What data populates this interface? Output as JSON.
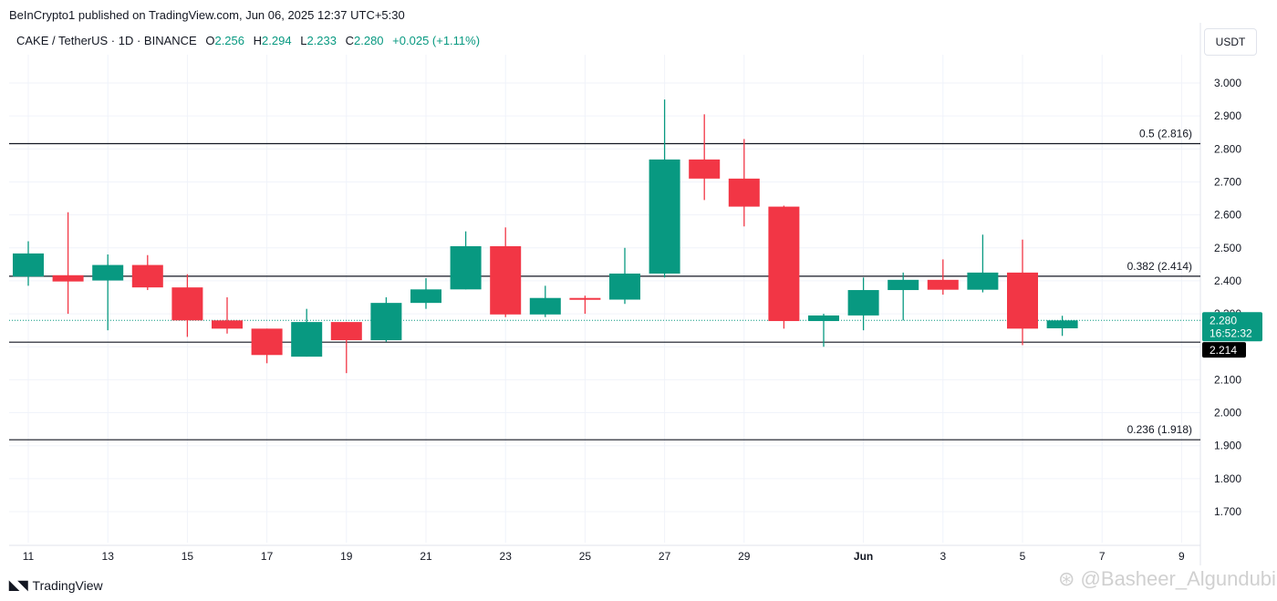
{
  "header": {
    "publisher": "BeInCrypto1 published on TradingView.com, Jun 06, 2025 12:37 UTC+5:30",
    "symbol": "CAKE / TetherUS · 1D · BINANCE",
    "open_label": "O",
    "open": "2.256",
    "high_label": "H",
    "high": "2.294",
    "low_label": "L",
    "low": "2.233",
    "close_label": "C",
    "close": "2.280",
    "change": "+0.025 (+1.11%)"
  },
  "currency_button": "USDT",
  "footer": {
    "logo_text": "TradingView",
    "watermark": "Basheer_Algundubi"
  },
  "colors": {
    "up": "#089981",
    "down": "#f23645",
    "level_line": "#131722",
    "grid": "#f0f3fa"
  },
  "chart_data": {
    "type": "candlestick",
    "y_axis": {
      "ticks": [
        3.0,
        2.9,
        2.8,
        2.7,
        2.6,
        2.5,
        2.4,
        2.3,
        2.2,
        2.1,
        2.0,
        1.9,
        1.8,
        1.7
      ],
      "tick_labels": [
        "3.000",
        "2.900",
        "2.800",
        "2.700",
        "2.600",
        "2.500",
        "2.400",
        "2.300",
        "2.200",
        "2.100",
        "2.000",
        "1.900",
        "1.800",
        "1.700"
      ],
      "range": [
        1.62,
        3.08
      ]
    },
    "x_axis": {
      "tick_labels": [
        {
          "label": "11",
          "day": 11
        },
        {
          "label": "13",
          "day": 13
        },
        {
          "label": "15",
          "day": 15
        },
        {
          "label": "17",
          "day": 17
        },
        {
          "label": "19",
          "day": 19
        },
        {
          "label": "21",
          "day": 21
        },
        {
          "label": "23",
          "day": 23
        },
        {
          "label": "25",
          "day": 25
        },
        {
          "label": "27",
          "day": 27
        },
        {
          "label": "29",
          "day": 29
        },
        {
          "label": "Jun",
          "day": 32,
          "bold": true
        },
        {
          "label": "3",
          "day": 34
        },
        {
          "label": "5",
          "day": 36
        },
        {
          "label": "7",
          "day": 38
        },
        {
          "label": "9",
          "day": 40
        }
      ]
    },
    "candles": [
      {
        "date": "May 11",
        "o": 2.413,
        "h": 2.52,
        "l": 2.385,
        "c": 2.483
      },
      {
        "date": "May 12",
        "o": 2.417,
        "h": 2.608,
        "l": 2.3,
        "c": 2.398
      },
      {
        "date": "May 13",
        "o": 2.401,
        "h": 2.48,
        "l": 2.25,
        "c": 2.448
      },
      {
        "date": "May 14",
        "o": 2.448,
        "h": 2.478,
        "l": 2.372,
        "c": 2.38
      },
      {
        "date": "May 15",
        "o": 2.38,
        "h": 2.42,
        "l": 2.23,
        "c": 2.28
      },
      {
        "date": "May 16",
        "o": 2.28,
        "h": 2.35,
        "l": 2.24,
        "c": 2.255
      },
      {
        "date": "May 17",
        "o": 2.255,
        "h": 2.255,
        "l": 2.15,
        "c": 2.175
      },
      {
        "date": "May 18",
        "o": 2.17,
        "h": 2.315,
        "l": 2.17,
        "c": 2.275
      },
      {
        "date": "May 19",
        "o": 2.275,
        "h": 2.275,
        "l": 2.12,
        "c": 2.22
      },
      {
        "date": "May 20",
        "o": 2.22,
        "h": 2.35,
        "l": 2.215,
        "c": 2.333
      },
      {
        "date": "May 21",
        "o": 2.333,
        "h": 2.408,
        "l": 2.315,
        "c": 2.374
      },
      {
        "date": "May 22",
        "o": 2.374,
        "h": 2.55,
        "l": 2.374,
        "c": 2.505
      },
      {
        "date": "May 23",
        "o": 2.505,
        "h": 2.562,
        "l": 2.29,
        "c": 2.298
      },
      {
        "date": "May 24",
        "o": 2.298,
        "h": 2.385,
        "l": 2.29,
        "c": 2.348
      },
      {
        "date": "May 25",
        "o": 2.348,
        "h": 2.355,
        "l": 2.3,
        "c": 2.343
      },
      {
        "date": "May 26",
        "o": 2.343,
        "h": 2.5,
        "l": 2.33,
        "c": 2.422
      },
      {
        "date": "May 27",
        "o": 2.422,
        "h": 2.95,
        "l": 2.41,
        "c": 2.768
      },
      {
        "date": "May 28",
        "o": 2.768,
        "h": 2.905,
        "l": 2.645,
        "c": 2.71
      },
      {
        "date": "May 29",
        "o": 2.71,
        "h": 2.83,
        "l": 2.565,
        "c": 2.625
      },
      {
        "date": "May 30",
        "o": 2.625,
        "h": 2.628,
        "l": 2.255,
        "c": 2.278
      },
      {
        "date": "May 31",
        "o": 2.278,
        "h": 2.3,
        "l": 2.2,
        "c": 2.295
      },
      {
        "date": "Jun 01",
        "o": 2.295,
        "h": 2.41,
        "l": 2.25,
        "c": 2.372
      },
      {
        "date": "Jun 02",
        "o": 2.372,
        "h": 2.425,
        "l": 2.28,
        "c": 2.403
      },
      {
        "date": "Jun 03",
        "o": 2.403,
        "h": 2.465,
        "l": 2.358,
        "c": 2.373
      },
      {
        "date": "Jun 04",
        "o": 2.373,
        "h": 2.54,
        "l": 2.365,
        "c": 2.425
      },
      {
        "date": "Jun 05",
        "o": 2.425,
        "h": 2.525,
        "l": 2.205,
        "c": 2.255
      },
      {
        "date": "Jun 06",
        "o": 2.256,
        "h": 2.294,
        "l": 2.233,
        "c": 2.28
      }
    ],
    "levels": [
      {
        "label": "0.5 (2.816)",
        "value": 2.816
      },
      {
        "label": "0.382 (2.414)",
        "value": 2.414
      },
      {
        "label": "0.236 (1.918)",
        "value": 1.918
      },
      {
        "label": "",
        "value": 2.214
      }
    ],
    "price_badge": {
      "price": "2.280",
      "countdown": "16:52:32",
      "value": 2.28
    },
    "level_badge": {
      "label": "2.214",
      "value": 2.214
    }
  }
}
